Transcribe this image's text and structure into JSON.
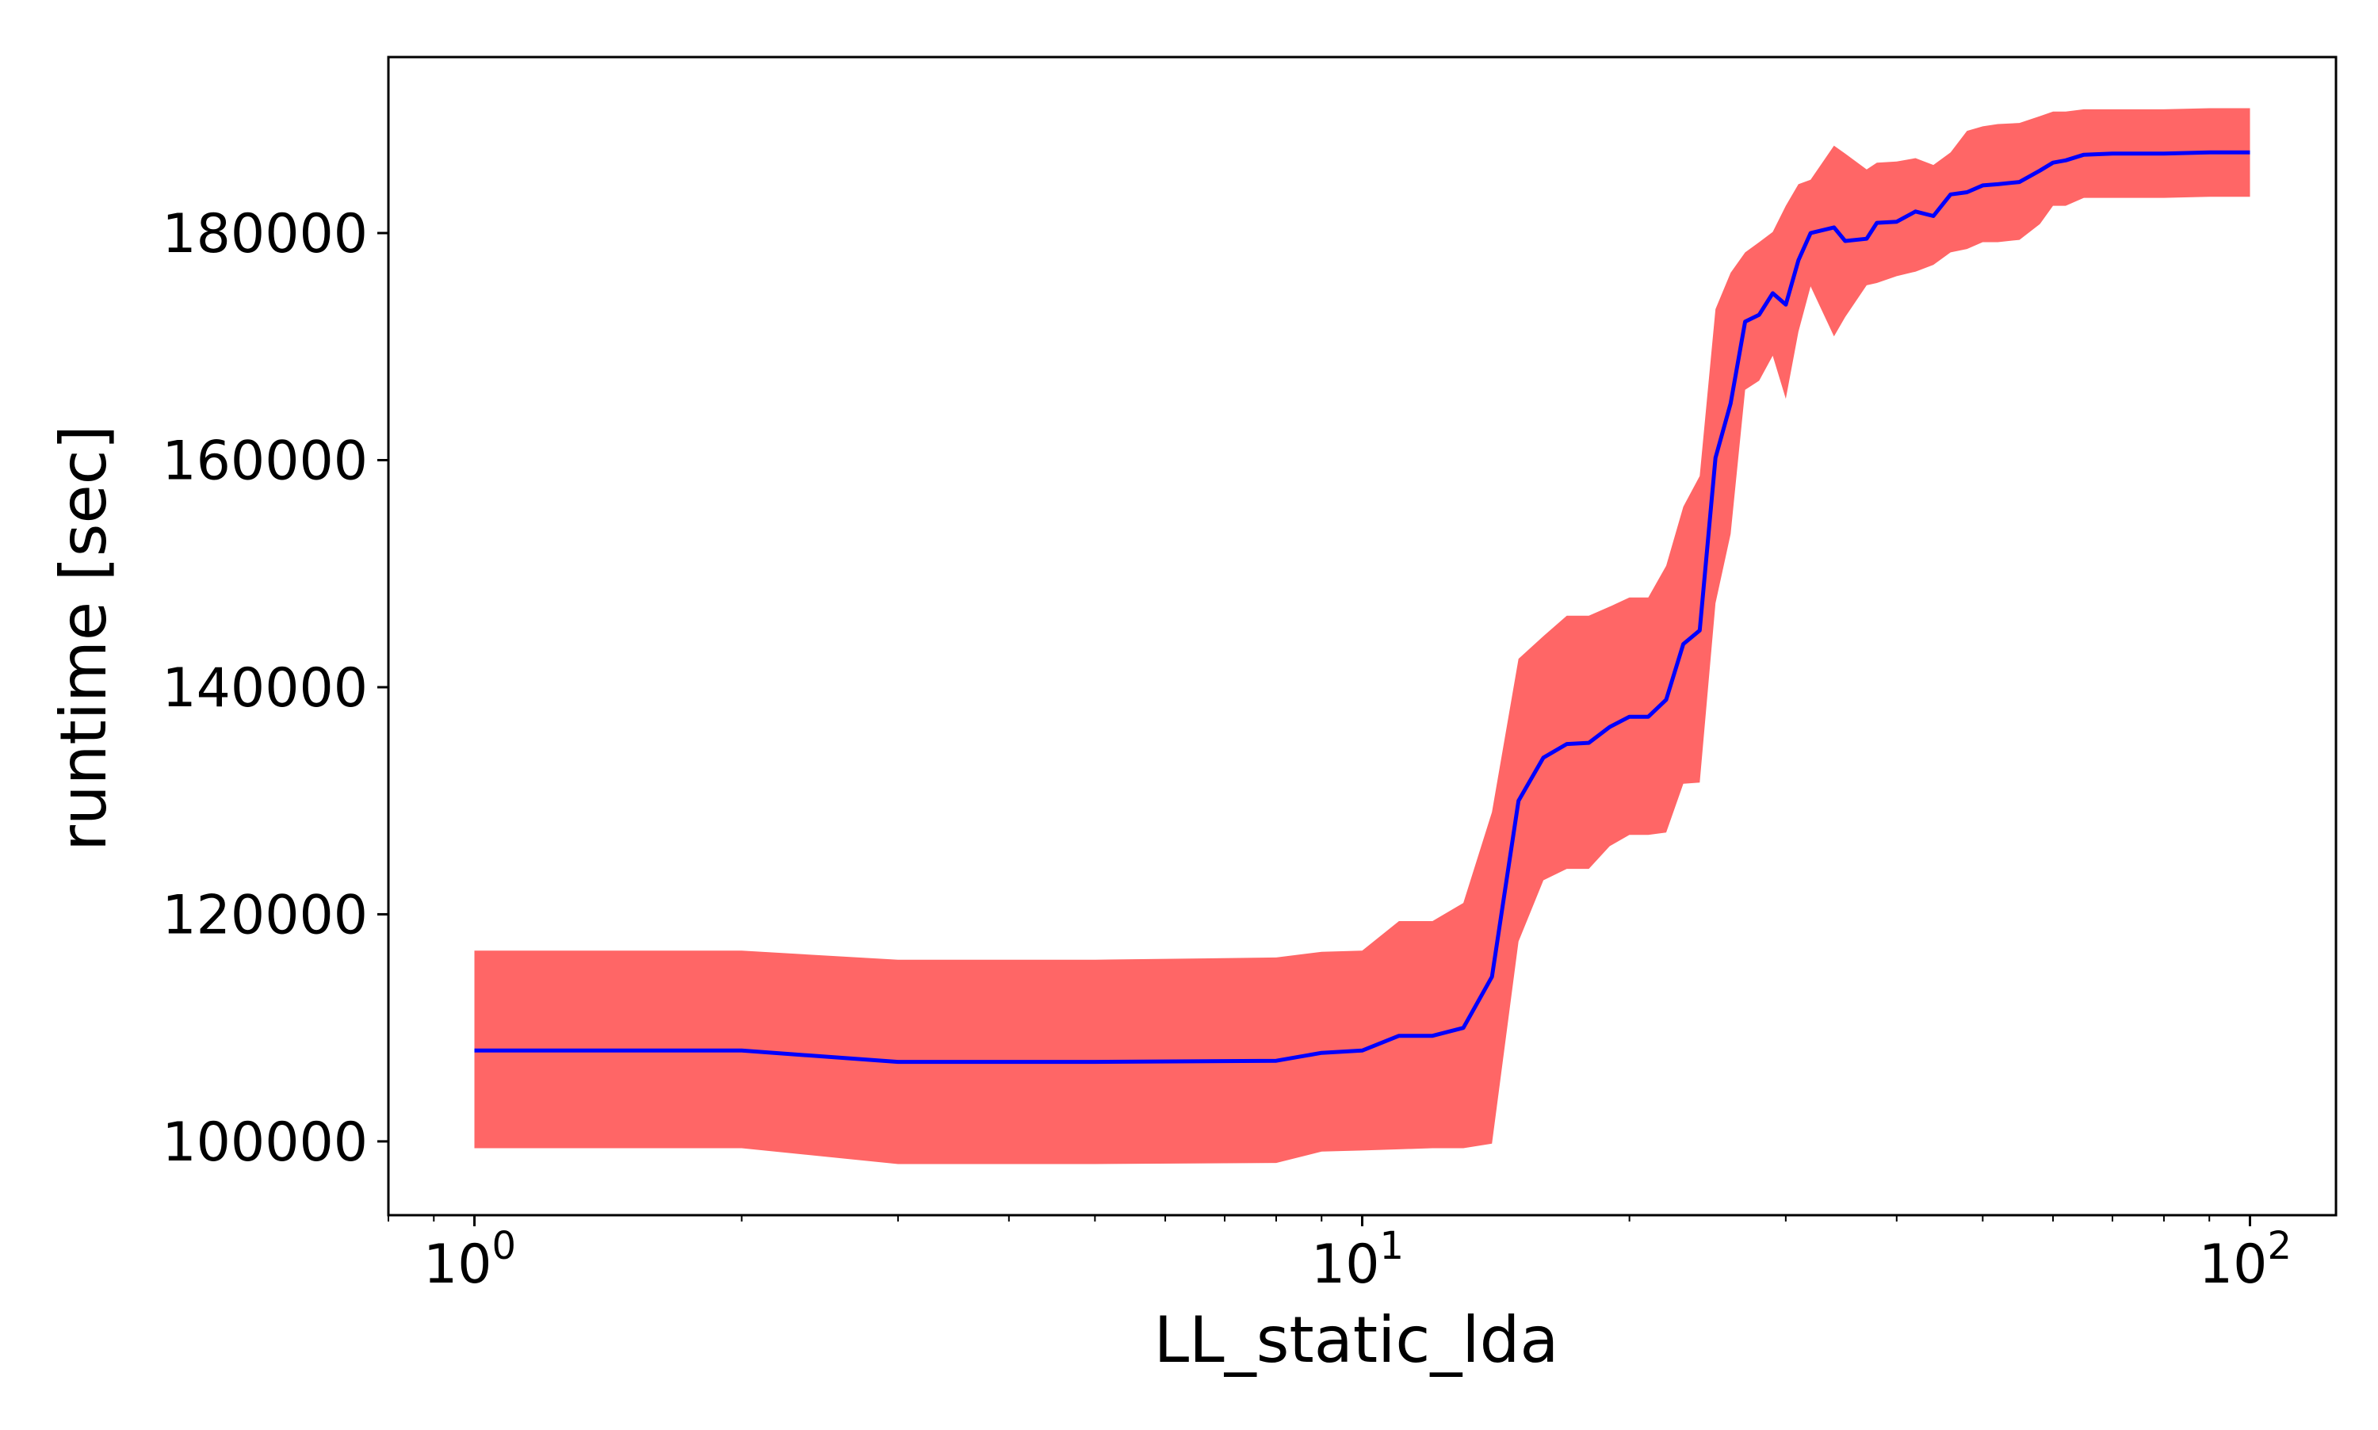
{
  "chart_data": {
    "type": "line",
    "xlabel": "LL_static_lda",
    "ylabel": "runtime [sec]",
    "xscale": "log",
    "xlim": [
      0.8,
      125
    ],
    "ylim": [
      93500,
      195500
    ],
    "grid": false,
    "legend": "none",
    "x_ticks": [
      {
        "value": 1,
        "base": "10",
        "exp": "0"
      },
      {
        "value": 10,
        "base": "10",
        "exp": "1"
      },
      {
        "value": 100,
        "base": "10",
        "exp": "2"
      }
    ],
    "y_ticks": [
      {
        "value": 100000,
        "label": "100000"
      },
      {
        "value": 120000,
        "label": "120000"
      },
      {
        "value": 140000,
        "label": "140000"
      },
      {
        "value": 160000,
        "label": "160000"
      },
      {
        "value": 180000,
        "label": "180000"
      }
    ],
    "series": [
      {
        "color": "#0000ff",
        "band_color": "#ff6666",
        "x": [
          1,
          2,
          3,
          5,
          8,
          9,
          10,
          11,
          12,
          13,
          14,
          15,
          16,
          17,
          18,
          19,
          20,
          21,
          22,
          23,
          24,
          25,
          26,
          27,
          28,
          29,
          30,
          31,
          32,
          34,
          35,
          37,
          38,
          40,
          42,
          44,
          46,
          48,
          50,
          52,
          55,
          58,
          60,
          62,
          65,
          70,
          80,
          90,
          100
        ],
        "y": [
          108000,
          108000,
          107000,
          107000,
          107100,
          107800,
          108000,
          109300,
          109300,
          110000,
          114500,
          130000,
          133800,
          135000,
          135100,
          136500,
          137400,
          137400,
          138900,
          143800,
          145000,
          160200,
          165000,
          172200,
          172800,
          174700,
          173700,
          177600,
          180000,
          180500,
          179300,
          179500,
          180900,
          181000,
          181900,
          181500,
          183400,
          183600,
          184200,
          184300,
          184500,
          185500,
          186200,
          186400,
          186900,
          187000,
          187000,
          187100,
          187100
        ],
        "upper": [
          116800,
          116800,
          116000,
          116000,
          116200,
          116700,
          116800,
          119400,
          119400,
          121000,
          129000,
          142500,
          144500,
          146300,
          146300,
          147100,
          147900,
          147900,
          150700,
          155900,
          158600,
          173300,
          176500,
          178300,
          179200,
          180100,
          182400,
          184300,
          184700,
          187700,
          187000,
          185600,
          186200,
          186300,
          186600,
          186000,
          187100,
          189000,
          189400,
          189600,
          189700,
          190300,
          190700,
          190700,
          190900,
          190900,
          190900,
          191000,
          191000
        ],
        "lower": [
          99400,
          99400,
          98000,
          98000,
          98100,
          99100,
          99200,
          99300,
          99400,
          99400,
          99800,
          117600,
          123000,
          124000,
          124000,
          126000,
          127000,
          127000,
          127200,
          131500,
          131600,
          147400,
          153500,
          166200,
          167000,
          169200,
          165400,
          171300,
          175300,
          170900,
          172600,
          175400,
          175600,
          176200,
          176600,
          177200,
          178300,
          178600,
          179200,
          179200,
          179400,
          180800,
          182400,
          182400,
          183100,
          183100,
          183100,
          183200,
          183200
        ]
      }
    ]
  }
}
